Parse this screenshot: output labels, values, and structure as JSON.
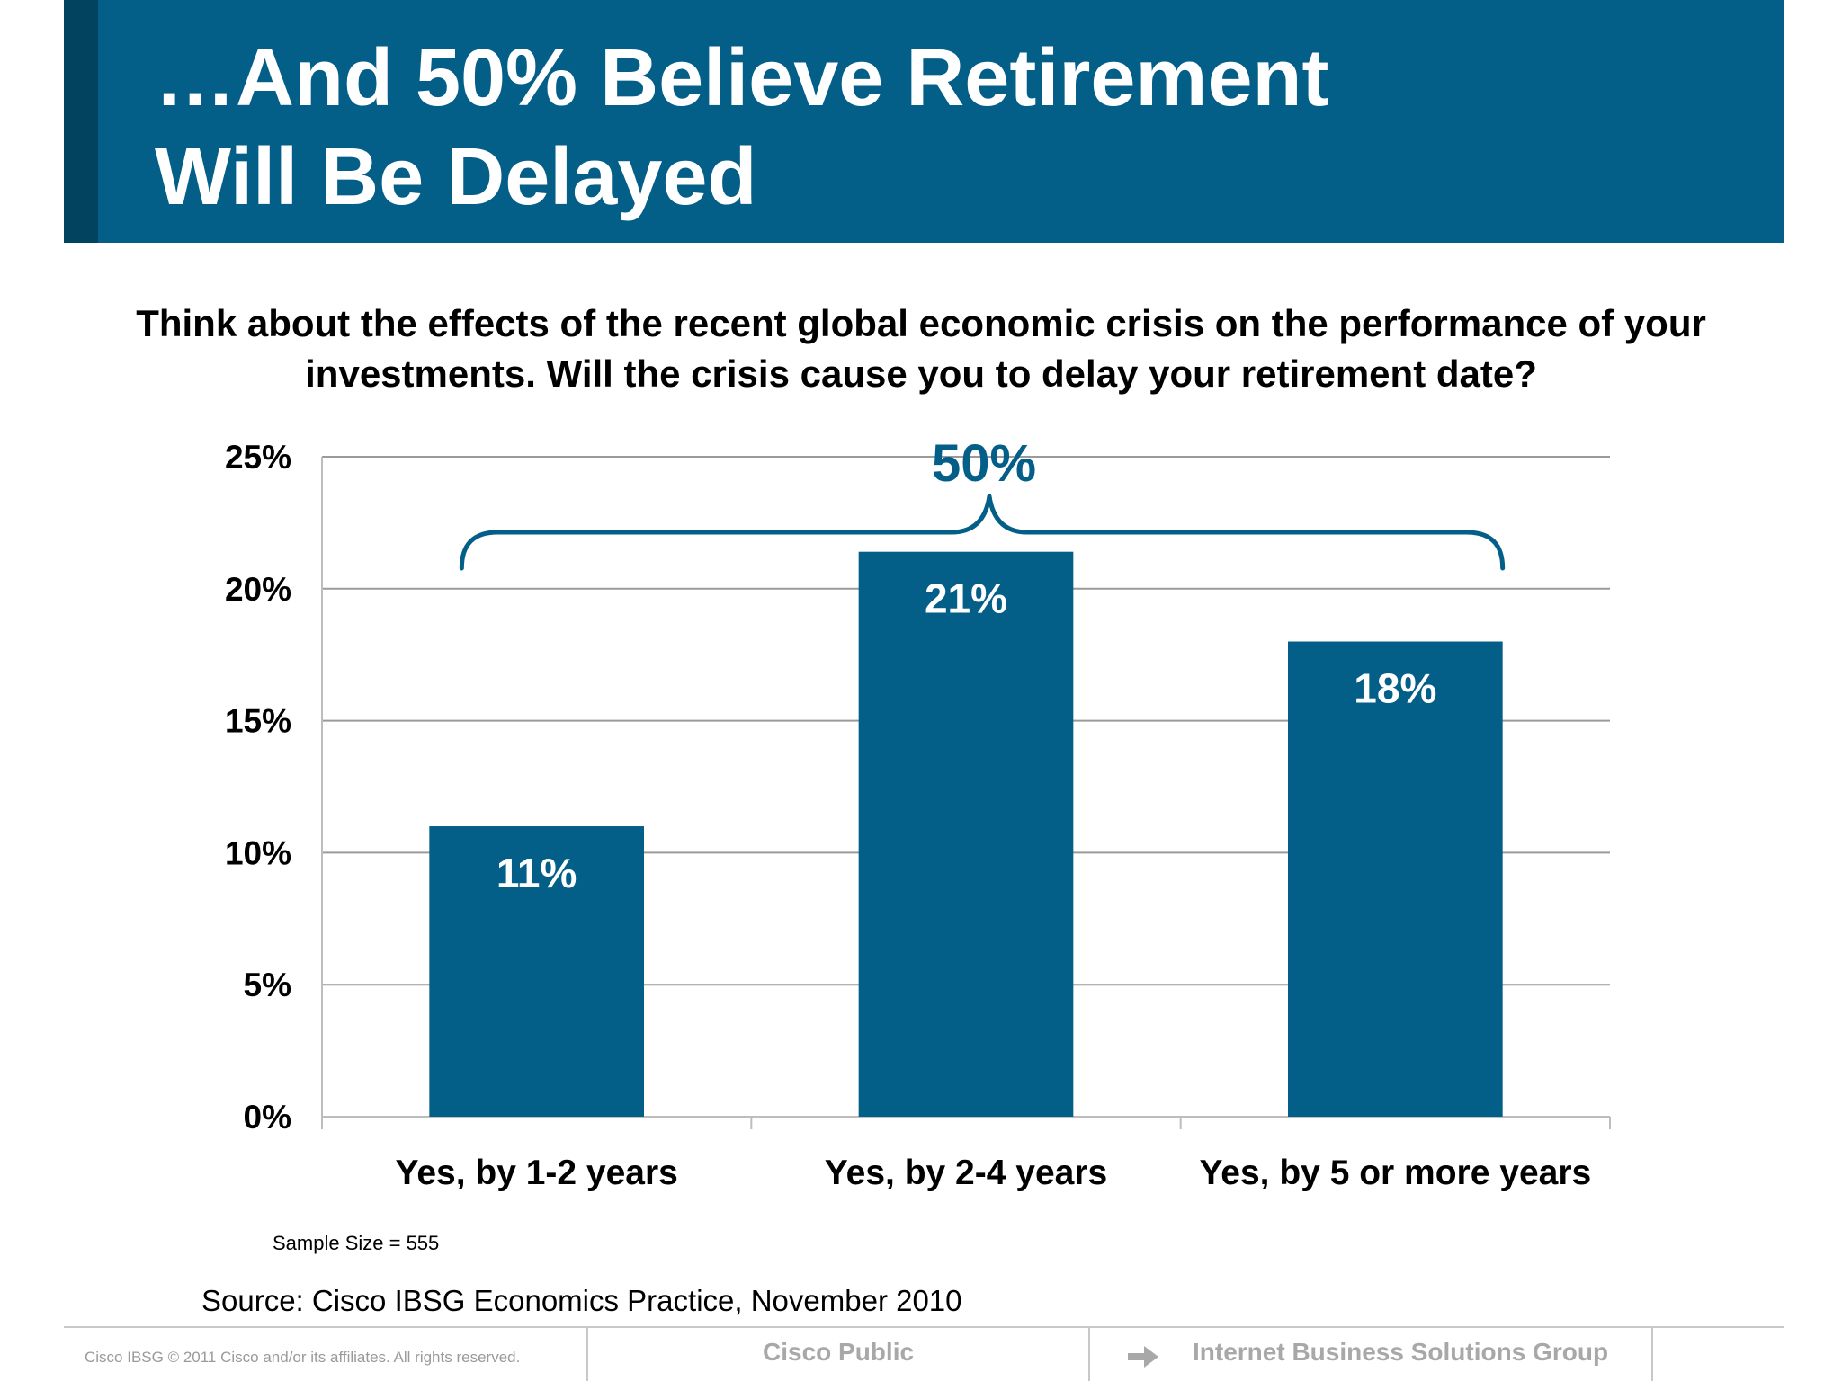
{
  "header": {
    "title": "…And 50% Believe Retirement\nWill Be Delayed"
  },
  "question": "Think about the effects of the recent global economic crisis on the performance of your investments. Will the crisis cause you to delay your retirement date?",
  "chart_data": {
    "type": "bar",
    "categories": [
      "Yes, by 1-2 years",
      "Yes, by 2-4 years",
      "Yes, by 5 or more years"
    ],
    "values": [
      11,
      21.4,
      18
    ],
    "data_labels": [
      "11%",
      "21%",
      "18%"
    ],
    "y_ticks": [
      "0%",
      "5%",
      "10%",
      "15%",
      "20%",
      "25%"
    ],
    "ylim": [
      0,
      25
    ],
    "grid": true,
    "legend": "none",
    "bar_color": "#035e88",
    "annotation": {
      "text": "50%",
      "type": "brace",
      "spans_categories": [
        0,
        2
      ]
    }
  },
  "notes": {
    "sample_size": "Sample Size = 555",
    "source": "Source: Cisco IBSG Economics Practice, November 2010"
  },
  "footer": {
    "copyright": "Cisco IBSG © 2011 Cisco and/or its affiliates. All rights reserved.",
    "classification": "Cisco Public",
    "group": "Internet Business Solutions Group",
    "arrow_icon": "arrow-right-icon"
  },
  "colors": {
    "primary": "#035e88",
    "accent_dark": "#02445f"
  }
}
